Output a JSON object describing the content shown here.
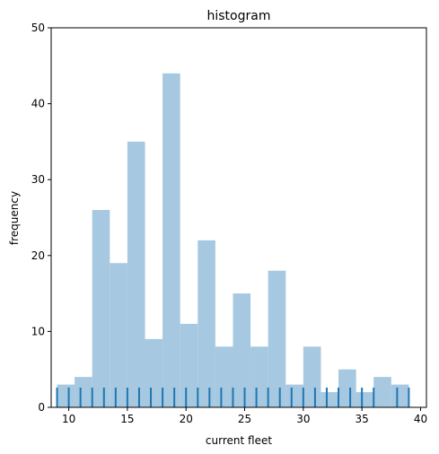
{
  "chart_data": {
    "type": "histogram",
    "title": "histogram",
    "xlabel": "current fleet",
    "ylabel": "frequency",
    "xlim": [
      8.5,
      40.5
    ],
    "ylim": [
      0,
      50
    ],
    "xticks": [
      10,
      15,
      20,
      25,
      30,
      35,
      40
    ],
    "yticks": [
      0,
      10,
      20,
      30,
      40,
      50
    ],
    "bin_edges": [
      9,
      10.5,
      12,
      13.5,
      15,
      16.5,
      18,
      19.5,
      21,
      22.5,
      24,
      25.5,
      27,
      28.5,
      30,
      31.5,
      33,
      34.5,
      36,
      37.5,
      39
    ],
    "counts": [
      3,
      4,
      26,
      19,
      35,
      9,
      44,
      11,
      22,
      8,
      15,
      8,
      18,
      3,
      8,
      2,
      5,
      2,
      4,
      3
    ],
    "rug_positions": [
      9,
      10,
      11,
      12,
      13,
      14,
      15,
      16,
      17,
      18,
      19,
      20,
      21,
      22,
      23,
      24,
      25,
      26,
      27,
      28,
      29,
      30,
      31,
      32,
      33,
      34,
      35,
      36,
      38,
      39
    ],
    "bar_color": "#a6c8e0",
    "rug_color": "#1f77b4",
    "grid": false,
    "legend": "none"
  }
}
